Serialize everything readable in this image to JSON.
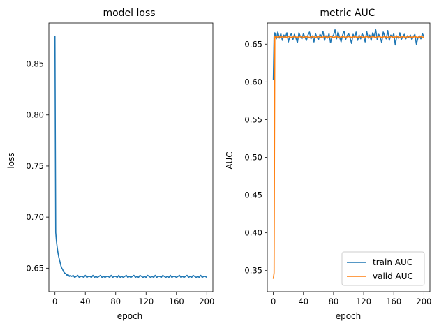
{
  "chart_data": [
    {
      "type": "line",
      "title": "model loss",
      "xlabel": "epoch",
      "ylabel": "loss",
      "xlim": [
        -8,
        208
      ],
      "ylim": [
        0.627,
        0.89
      ],
      "xticks": [
        0,
        40,
        80,
        120,
        160,
        200
      ],
      "yticks": [
        0.65,
        0.7,
        0.75,
        0.8,
        0.85
      ],
      "ytick_labels": [
        "0.65",
        "0.70",
        "0.75",
        "0.80",
        "0.85"
      ],
      "grid": false,
      "legend": "none",
      "series": [
        {
          "color": "#1f77b4",
          "x": [
            0,
            1,
            2,
            3,
            4,
            5,
            6,
            7,
            8,
            9,
            10,
            11,
            12,
            13,
            14,
            15,
            16,
            17,
            18,
            19,
            20,
            22,
            24,
            26,
            28,
            30,
            32,
            34,
            36,
            38,
            40,
            42,
            44,
            46,
            48,
            50,
            52,
            54,
            56,
            58,
            60,
            62,
            64,
            66,
            68,
            70,
            72,
            74,
            76,
            78,
            80,
            82,
            84,
            86,
            88,
            90,
            92,
            94,
            96,
            98,
            100,
            102,
            104,
            106,
            108,
            110,
            112,
            114,
            116,
            118,
            120,
            122,
            124,
            126,
            128,
            130,
            132,
            134,
            136,
            138,
            140,
            142,
            144,
            146,
            148,
            150,
            152,
            154,
            156,
            158,
            160,
            162,
            164,
            166,
            168,
            170,
            172,
            174,
            176,
            178,
            180,
            182,
            184,
            186,
            188,
            190,
            192,
            194,
            196,
            198,
            200
          ],
          "y": [
            0.877,
            0.685,
            0.676,
            0.67,
            0.665,
            0.661,
            0.658,
            0.655,
            0.652,
            0.65,
            0.649,
            0.647,
            0.646,
            0.645,
            0.645,
            0.644,
            0.643,
            0.644,
            0.643,
            0.642,
            0.643,
            0.642,
            0.643,
            0.641,
            0.642,
            0.643,
            0.641,
            0.642,
            0.642,
            0.641,
            0.643,
            0.641,
            0.642,
            0.642,
            0.641,
            0.643,
            0.641,
            0.642,
            0.641,
            0.642,
            0.643,
            0.641,
            0.642,
            0.641,
            0.642,
            0.642,
            0.641,
            0.643,
            0.641,
            0.642,
            0.642,
            0.641,
            0.643,
            0.641,
            0.642,
            0.641,
            0.642,
            0.643,
            0.641,
            0.642,
            0.641,
            0.642,
            0.643,
            0.641,
            0.642,
            0.641,
            0.643,
            0.642,
            0.641,
            0.642,
            0.641,
            0.643,
            0.642,
            0.641,
            0.642,
            0.641,
            0.643,
            0.641,
            0.642,
            0.642,
            0.641,
            0.643,
            0.642,
            0.641,
            0.642,
            0.641,
            0.643,
            0.641,
            0.642,
            0.642,
            0.641,
            0.642,
            0.643,
            0.641,
            0.642,
            0.641,
            0.642,
            0.643,
            0.641,
            0.642,
            0.641,
            0.643,
            0.642,
            0.641,
            0.642,
            0.641,
            0.643,
            0.641,
            0.642,
            0.642,
            0.641
          ]
        }
      ]
    },
    {
      "type": "line",
      "title": "metric AUC",
      "xlabel": "epoch",
      "ylabel": "AUC",
      "xlim": [
        -8,
        208
      ],
      "ylim": [
        0.322,
        0.678
      ],
      "xticks": [
        0,
        40,
        80,
        120,
        160,
        200
      ],
      "yticks": [
        0.35,
        0.4,
        0.45,
        0.5,
        0.55,
        0.6,
        0.65
      ],
      "ytick_labels": [
        "0.35",
        "0.40",
        "0.45",
        "0.50",
        "0.55",
        "0.60",
        "0.65"
      ],
      "grid": false,
      "legend": "lower right",
      "series": [
        {
          "name": "train AUC",
          "color": "#1f77b4",
          "x": [
            0,
            1,
            2,
            4,
            6,
            8,
            10,
            12,
            14,
            16,
            18,
            20,
            22,
            24,
            26,
            28,
            30,
            32,
            34,
            36,
            38,
            40,
            42,
            44,
            46,
            48,
            50,
            52,
            54,
            56,
            58,
            60,
            62,
            64,
            66,
            68,
            70,
            72,
            74,
            76,
            78,
            80,
            82,
            84,
            86,
            88,
            90,
            92,
            94,
            96,
            98,
            100,
            102,
            104,
            106,
            108,
            110,
            112,
            114,
            116,
            118,
            120,
            122,
            124,
            126,
            128,
            130,
            132,
            134,
            136,
            138,
            140,
            142,
            144,
            146,
            148,
            150,
            152,
            154,
            156,
            158,
            160,
            162,
            164,
            166,
            168,
            170,
            172,
            174,
            176,
            178,
            180,
            182,
            184,
            186,
            188,
            190,
            192,
            194,
            196,
            198,
            200
          ],
          "y": [
            0.603,
            0.66,
            0.665,
            0.657,
            0.666,
            0.658,
            0.664,
            0.655,
            0.662,
            0.659,
            0.665,
            0.653,
            0.661,
            0.664,
            0.656,
            0.663,
            0.658,
            0.652,
            0.665,
            0.66,
            0.657,
            0.664,
            0.659,
            0.655,
            0.662,
            0.666,
            0.657,
            0.661,
            0.653,
            0.664,
            0.659,
            0.656,
            0.663,
            0.66,
            0.667,
            0.655,
            0.661,
            0.658,
            0.664,
            0.652,
            0.66,
            0.662,
            0.669,
            0.657,
            0.666,
            0.659,
            0.653,
            0.662,
            0.667,
            0.656,
            0.661,
            0.664,
            0.658,
            0.651,
            0.663,
            0.659,
            0.666,
            0.655,
            0.662,
            0.657,
            0.664,
            0.66,
            0.653,
            0.667,
            0.658,
            0.662,
            0.655,
            0.665,
            0.66,
            0.669,
            0.656,
            0.663,
            0.659,
            0.652,
            0.666,
            0.661,
            0.657,
            0.668,
            0.655,
            0.662,
            0.659,
            0.664,
            0.649,
            0.661,
            0.658,
            0.665,
            0.656,
            0.66,
            0.663,
            0.657,
            0.661,
            0.659,
            0.662,
            0.656,
            0.66,
            0.663,
            0.65,
            0.658,
            0.661,
            0.657,
            0.664,
            0.66
          ]
        },
        {
          "name": "valid AUC",
          "color": "#ff7f0e",
          "x": [
            0,
            1,
            2,
            3,
            4,
            6,
            8,
            10,
            12,
            14,
            16,
            18,
            20,
            24,
            28,
            32,
            36,
            40,
            44,
            48,
            52,
            56,
            60,
            64,
            68,
            72,
            76,
            80,
            84,
            88,
            92,
            96,
            100,
            104,
            108,
            112,
            116,
            120,
            124,
            128,
            132,
            136,
            140,
            144,
            148,
            152,
            156,
            160,
            164,
            168,
            172,
            176,
            180,
            184,
            188,
            192,
            196,
            200
          ],
          "y": [
            0.339,
            0.347,
            0.66,
            0.659,
            0.66,
            0.659,
            0.66,
            0.659,
            0.66,
            0.659,
            0.66,
            0.659,
            0.66,
            0.659,
            0.66,
            0.659,
            0.66,
            0.659,
            0.66,
            0.659,
            0.66,
            0.659,
            0.66,
            0.659,
            0.66,
            0.659,
            0.66,
            0.659,
            0.66,
            0.659,
            0.66,
            0.659,
            0.66,
            0.659,
            0.66,
            0.659,
            0.66,
            0.659,
            0.66,
            0.659,
            0.66,
            0.659,
            0.66,
            0.659,
            0.66,
            0.659,
            0.66,
            0.659,
            0.66,
            0.659,
            0.66,
            0.659,
            0.66,
            0.659,
            0.66,
            0.659,
            0.66,
            0.659
          ]
        }
      ]
    }
  ]
}
